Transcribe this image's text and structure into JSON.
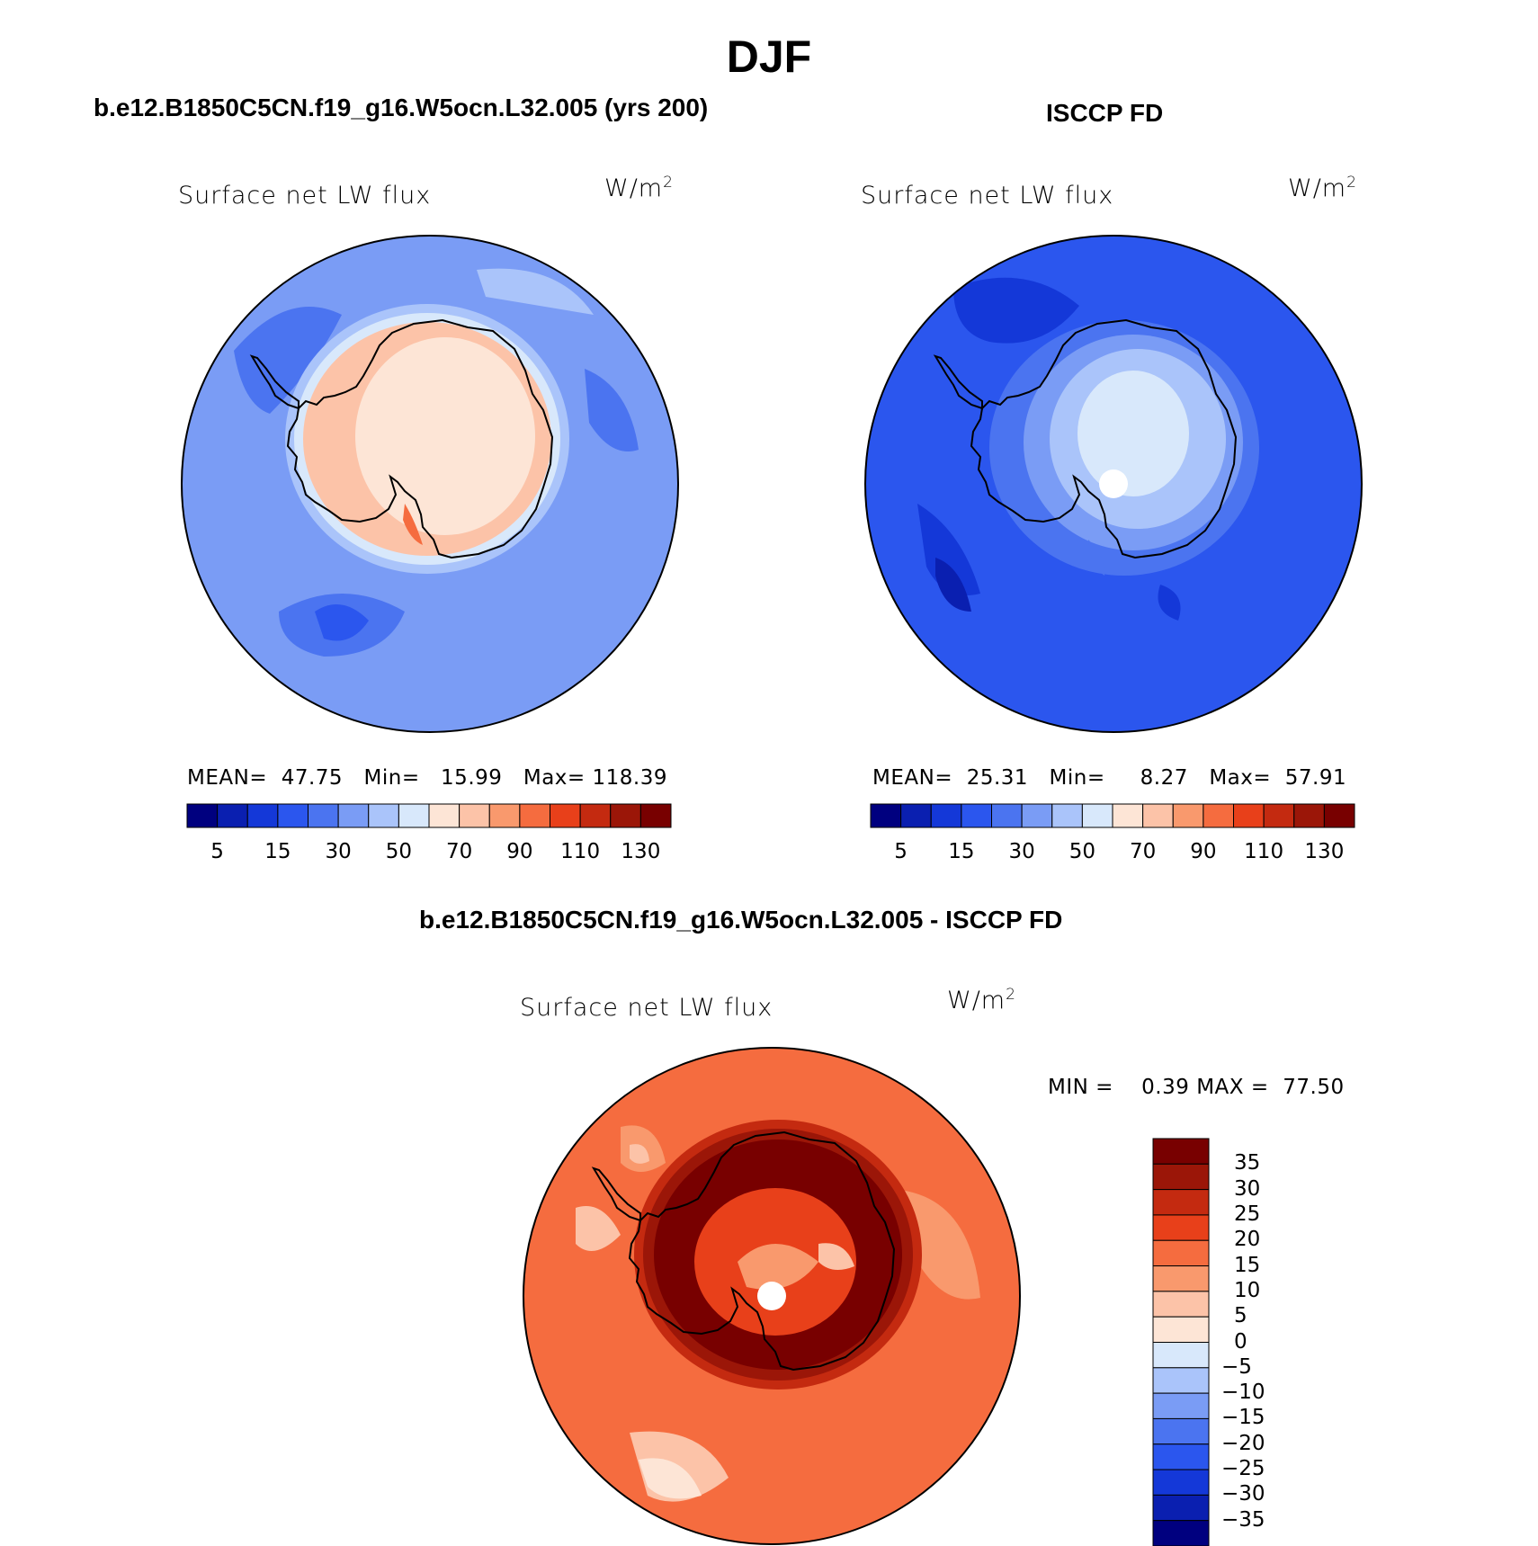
{
  "title": "DJF",
  "panels": [
    {
      "id": "model",
      "case_title": "b.e12.B1850C5CN.f19_g16.W5ocn.L32.005 (yrs 200)",
      "variable_label": "Surface net LW flux",
      "units_label": "W/m",
      "units_exponent": "2",
      "stats": {
        "mean_label": "MEAN=",
        "mean": "47.75",
        "min_label": "Min=",
        "min": "15.99",
        "max_label": "Max=",
        "max": "118.39"
      }
    },
    {
      "id": "obs",
      "case_title": "ISCCP FD",
      "variable_label": "Surface net LW flux",
      "units_label": "W/m",
      "units_exponent": "2",
      "stats": {
        "mean_label": "MEAN=",
        "mean": "25.31",
        "min_label": "Min=",
        "min": "8.27",
        "max_label": "Max=",
        "max": "57.91"
      }
    },
    {
      "id": "diff",
      "case_title": "b.e12.B1850C5CN.f19_g16.W5ocn.L32.005 - ISCCP FD",
      "variable_label": "Surface net LW flux",
      "units_label": "W/m",
      "units_exponent": "2",
      "stats": {
        "min_label": "MIN =",
        "min": "0.39",
        "max_label": "MAX =",
        "max": "77.50"
      }
    }
  ],
  "colorbars": {
    "abs": {
      "colors": [
        "#00007f",
        "#0a1fb0",
        "#1438d8",
        "#2b56ee",
        "#4b74f0",
        "#7a9cf5",
        "#aac4fa",
        "#d8e8fb",
        "#fde5d6",
        "#fcc3a8",
        "#f9996d",
        "#f56c3f",
        "#e8401a",
        "#c42a10",
        "#9b1608",
        "#780000"
      ],
      "labels": [
        "5",
        "15",
        "30",
        "50",
        "70",
        "90",
        "110",
        "130"
      ]
    },
    "diff": {
      "colors": [
        "#780000",
        "#9b1608",
        "#c42a10",
        "#e8401a",
        "#f56c3f",
        "#f9996d",
        "#fcc3a8",
        "#fde5d6",
        "#d8e8fb",
        "#aac4fa",
        "#7a9cf5",
        "#4b74f0",
        "#2b56ee",
        "#1438d8",
        "#0a1fb0",
        "#00007f"
      ],
      "labels": [
        "35",
        "30",
        "25",
        "20",
        "15",
        "10",
        "5",
        "0",
        "−5",
        "−10",
        "−15",
        "−20",
        "−25",
        "−30",
        "−35"
      ]
    }
  },
  "maps": {
    "model": {
      "ocean_color": "#7a9cf5",
      "ring_colors": [
        "#aac4fa",
        "#d8e8fb",
        "#fcc3a8",
        "#fde5d6"
      ],
      "blob_colors": [
        "#4b74f0",
        "#2b56ee",
        "#aac4fa",
        "#f56c3f"
      ]
    },
    "obs": {
      "ocean_color": "#2b56ee",
      "ring_colors": [
        "#4b74f0",
        "#7a9cf5",
        "#aac4fa",
        "#d8e8fb"
      ],
      "blob_colors": [
        "#1438d8",
        "#0a1fb0",
        "#4b74f0",
        "#ffffff"
      ]
    },
    "diff": {
      "ocean_color": "#f56c3f",
      "ring_colors": [
        "#c42a10",
        "#9b1608",
        "#780000",
        "#e8401a"
      ],
      "blob_colors": [
        "#f9996d",
        "#fcc3a8",
        "#fde5d6",
        "#ffffff"
      ]
    }
  }
}
